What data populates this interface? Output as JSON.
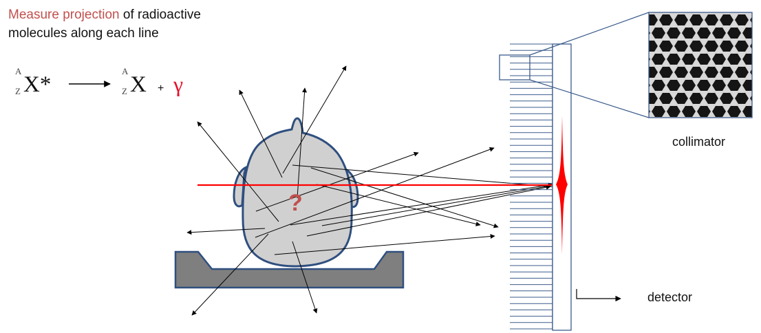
{
  "heading": {
    "line1_accent": "Measure projection",
    "line1_rest": " of radioactive",
    "line2": "molecules along each line"
  },
  "equation": {
    "mass_number": "A",
    "atomic_number": "Z",
    "parent": "X*",
    "daughter": "X",
    "plus": "+",
    "gamma": "γ"
  },
  "unknown_mark": "?",
  "labels": {
    "collimator": "collimator",
    "detector": "detector"
  },
  "colors": {
    "accent": "#c0504d",
    "head_fill": "#d0d0d0",
    "head_outline": "#2f4f7f",
    "bed_fill": "#7f7f7f",
    "ray": "#ff0000",
    "collimator_lines": "#3b5b8c"
  }
}
